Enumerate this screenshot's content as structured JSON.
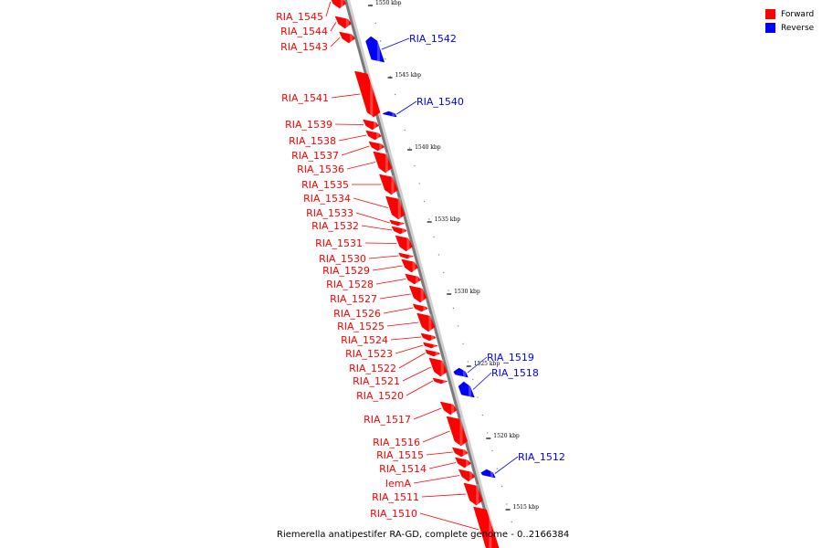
{
  "legend": {
    "forward_label": "Forward",
    "reverse_label": "Reverse",
    "forward_color": "#ff0000",
    "reverse_color": "#0000ff"
  },
  "caption": "Riemerella anatipestifer RA-GD, complete genome - 0..2166384",
  "ticks": [
    "1550 kbp",
    "1545 kbp",
    "1540 kbp",
    "1535 kbp",
    "1530 kbp",
    "1525 kbp",
    "1520 kbp",
    "1515 kbp"
  ],
  "genes": [
    {
      "name": "RIA_1545",
      "strand": "forward"
    },
    {
      "name": "RIA_1544",
      "strand": "forward"
    },
    {
      "name": "RIA_1543",
      "strand": "forward"
    },
    {
      "name": "RIA_1542",
      "strand": "reverse"
    },
    {
      "name": "RIA_1541",
      "strand": "forward"
    },
    {
      "name": "RIA_1540",
      "strand": "reverse"
    },
    {
      "name": "RIA_1539",
      "strand": "forward"
    },
    {
      "name": "RIA_1538",
      "strand": "forward"
    },
    {
      "name": "RIA_1537",
      "strand": "forward"
    },
    {
      "name": "RIA_1536",
      "strand": "forward"
    },
    {
      "name": "RIA_1535",
      "strand": "forward"
    },
    {
      "name": "RIA_1534",
      "strand": "forward"
    },
    {
      "name": "RIA_1533",
      "strand": "forward"
    },
    {
      "name": "RIA_1532",
      "strand": "forward"
    },
    {
      "name": "RIA_1531",
      "strand": "forward"
    },
    {
      "name": "RIA_1530",
      "strand": "forward"
    },
    {
      "name": "RIA_1529",
      "strand": "forward"
    },
    {
      "name": "RIA_1528",
      "strand": "forward"
    },
    {
      "name": "RIA_1527",
      "strand": "forward"
    },
    {
      "name": "RIA_1526",
      "strand": "forward"
    },
    {
      "name": "RIA_1525",
      "strand": "forward"
    },
    {
      "name": "RIA_1524",
      "strand": "forward"
    },
    {
      "name": "RIA_1523",
      "strand": "forward"
    },
    {
      "name": "RIA_1522",
      "strand": "forward"
    },
    {
      "name": "RIA_1521",
      "strand": "forward"
    },
    {
      "name": "RIA_1520",
      "strand": "forward"
    },
    {
      "name": "RIA_1519",
      "strand": "reverse"
    },
    {
      "name": "RIA_1518",
      "strand": "reverse"
    },
    {
      "name": "RIA_1517",
      "strand": "forward"
    },
    {
      "name": "RIA_1516",
      "strand": "forward"
    },
    {
      "name": "RIA_1515",
      "strand": "forward"
    },
    {
      "name": "RIA_1514",
      "strand": "forward"
    },
    {
      "name": "lemA",
      "strand": "forward"
    },
    {
      "name": "RIA_1512",
      "strand": "reverse"
    },
    {
      "name": "RIA_1511",
      "strand": "forward"
    },
    {
      "name": "RIA_1510",
      "strand": "forward"
    }
  ]
}
